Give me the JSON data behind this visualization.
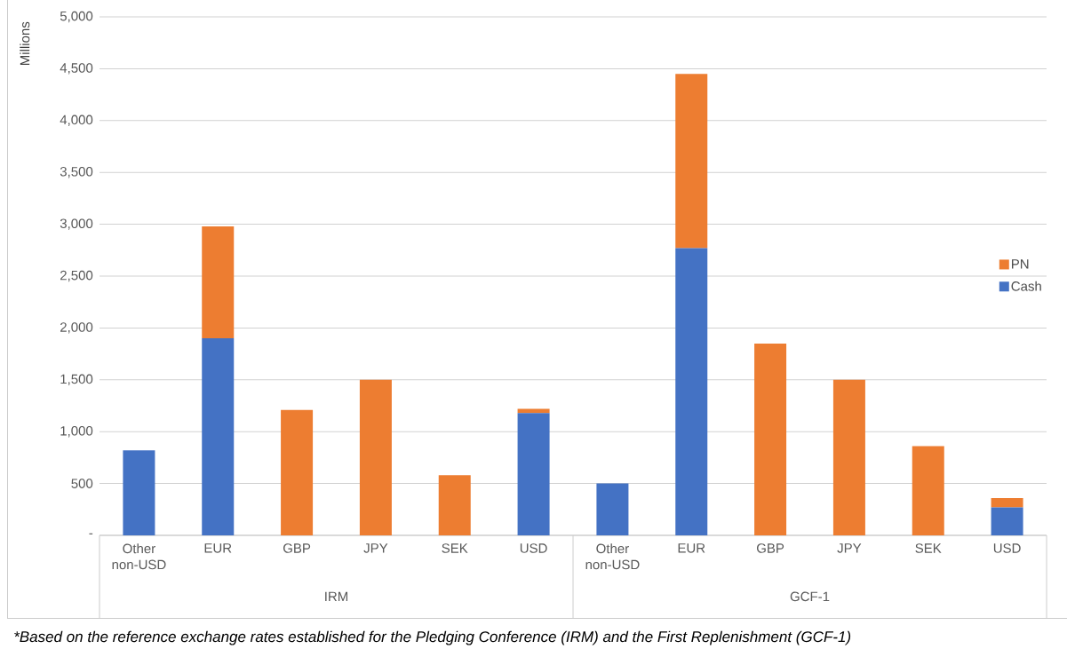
{
  "chart_data": {
    "type": "bar",
    "stacked": true,
    "ylabel": "Millions",
    "categories": [
      "Other non-USD",
      "EUR",
      "GBP",
      "JPY",
      "SEK",
      "USD",
      "Other non-USD",
      "EUR",
      "GBP",
      "JPY",
      "SEK",
      "USD"
    ],
    "series": [
      {
        "name": "Cash",
        "color": "#4472c4",
        "values": [
          820,
          1900,
          0,
          0,
          0,
          1180,
          500,
          2770,
          0,
          0,
          0,
          270
        ]
      },
      {
        "name": "PN",
        "color": "#ed7d31",
        "values": [
          0,
          1080,
          1210,
          1500,
          580,
          40,
          0,
          1680,
          1850,
          1500,
          860,
          90
        ]
      }
    ],
    "ylim": [
      0,
      5000
    ],
    "yticks": [
      {
        "value": 0,
        "label": "-"
      },
      500,
      {
        "value": 1000,
        "label": "1,000"
      },
      {
        "value": 1500,
        "label": "1,500"
      },
      {
        "value": 2000,
        "label": "2,000"
      },
      {
        "value": 2500,
        "label": "2,500"
      },
      {
        "value": 3000,
        "label": "3,000"
      },
      {
        "value": 3500,
        "label": "3,500"
      },
      {
        "value": 4000,
        "label": "4,000"
      },
      {
        "value": 4500,
        "label": "4,500"
      },
      {
        "value": 5000,
        "label": "5,000"
      }
    ],
    "grid": "y",
    "legend": "right",
    "annotations": [
      "IRM",
      "GCF-1",
      "*Based on the reference exchange rates established for the Pledging Conference (IRM) and the First Replenishment (GCF-1)"
    ]
  }
}
